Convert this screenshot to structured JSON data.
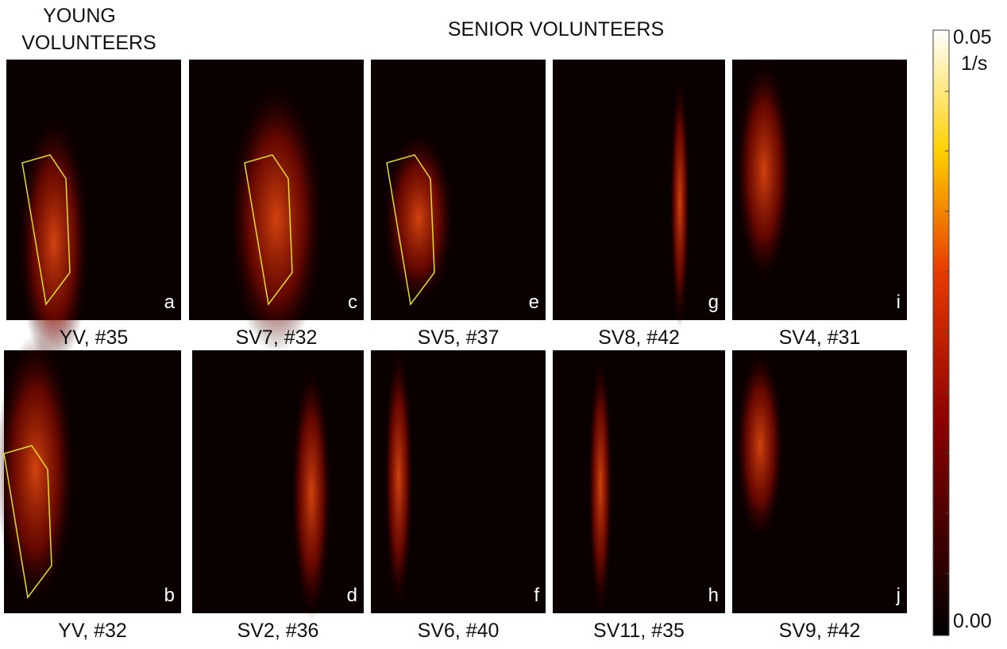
{
  "headers": {
    "young": [
      "YOUNG",
      "VOLUNTEERS"
    ],
    "senior": "SENIOR VOLUNTEERS"
  },
  "panels": [
    {
      "letter": "a",
      "caption": "YV, #35"
    },
    {
      "letter": "c",
      "caption": "SV7, #32"
    },
    {
      "letter": "e",
      "caption": "SV5, #37"
    },
    {
      "letter": "g",
      "caption": "SV8, #42"
    },
    {
      "letter": "i",
      "caption": "SV4, #31"
    },
    {
      "letter": "b",
      "caption": "YV, #32"
    },
    {
      "letter": "d",
      "caption": "SV2, #36"
    },
    {
      "letter": "f",
      "caption": "SV6, #40"
    },
    {
      "letter": "h",
      "caption": "SV11, #35"
    },
    {
      "letter": "j",
      "caption": "SV9, #42"
    }
  ],
  "colorbar": {
    "max": "0.05",
    "unit": "1/s",
    "min": "0.00"
  }
}
